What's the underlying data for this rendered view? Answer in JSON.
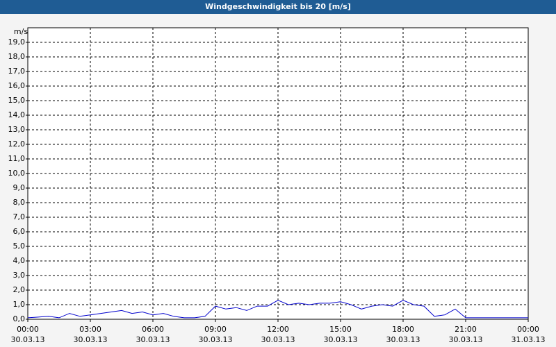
{
  "chart_data": {
    "type": "line",
    "title": "Windgeschwindigkeit bis 20 [m/s]",
    "y_unit": "m/s",
    "color": "#0000cc",
    "grid": true,
    "x": [
      0,
      0.5,
      1,
      1.5,
      2,
      2.5,
      3,
      3.5,
      4,
      4.5,
      5,
      5.5,
      6,
      6.5,
      7,
      7.5,
      8,
      8.5,
      9,
      9.5,
      10,
      10.5,
      11,
      11.5,
      12,
      12.5,
      13,
      13.5,
      14,
      14.5,
      15,
      15.5,
      16,
      16.5,
      17,
      17.5,
      18,
      18.5,
      19,
      19.5,
      20,
      20.5,
      21,
      21.5,
      22,
      22.5,
      23,
      23.5,
      24
    ],
    "values": [
      0.1,
      0.15,
      0.2,
      0.1,
      0.4,
      0.2,
      0.3,
      0.4,
      0.5,
      0.6,
      0.4,
      0.5,
      0.3,
      0.4,
      0.2,
      0.1,
      0.1,
      0.2,
      0.9,
      0.7,
      0.8,
      0.6,
      0.9,
      0.9,
      1.3,
      1.0,
      1.1,
      1.0,
      1.1,
      1.1,
      1.2,
      1.0,
      0.7,
      0.9,
      1.0,
      0.9,
      1.3,
      1.0,
      0.9,
      0.2,
      0.3,
      0.7,
      0.1,
      0.1,
      0.1,
      0.1,
      0.1,
      0.1,
      0.1
    ],
    "xlim": [
      0,
      24
    ],
    "xticks": [
      {
        "value": 0,
        "label": "00:00"
      },
      {
        "value": 3,
        "label": "03:00"
      },
      {
        "value": 6,
        "label": "06:00"
      },
      {
        "value": 9,
        "label": "09:00"
      },
      {
        "value": 12,
        "label": "12:00"
      },
      {
        "value": 15,
        "label": "15:00"
      },
      {
        "value": 18,
        "label": "18:00"
      },
      {
        "value": 21,
        "label": "21:00"
      },
      {
        "value": 24,
        "label": "00:00"
      }
    ],
    "xtick_dates": [
      "30.03.13",
      "30.03.13",
      "30.03.13",
      "30.03.13",
      "30.03.13",
      "30.03.13",
      "30.03.13",
      "30.03.13",
      "31.03.13"
    ],
    "ylim": [
      0,
      20
    ],
    "yticks": [
      {
        "value": 0,
        "label": "0,0"
      },
      {
        "value": 1,
        "label": "1,0"
      },
      {
        "value": 2,
        "label": "2,0"
      },
      {
        "value": 3,
        "label": "3,0"
      },
      {
        "value": 4,
        "label": "4,0"
      },
      {
        "value": 5,
        "label": "5,0"
      },
      {
        "value": 6,
        "label": "6,0"
      },
      {
        "value": 7,
        "label": "7,0"
      },
      {
        "value": 8,
        "label": "8,0"
      },
      {
        "value": 9,
        "label": "9,0"
      },
      {
        "value": 10,
        "label": "10,0"
      },
      {
        "value": 11,
        "label": "11,0"
      },
      {
        "value": 12,
        "label": "12,0"
      },
      {
        "value": 13,
        "label": "13,0"
      },
      {
        "value": 14,
        "label": "14,0"
      },
      {
        "value": 15,
        "label": "15,0"
      },
      {
        "value": 16,
        "label": "16,0"
      },
      {
        "value": 17,
        "label": "17,0"
      },
      {
        "value": 18,
        "label": "18,0"
      },
      {
        "value": 19,
        "label": "19,0"
      }
    ]
  }
}
